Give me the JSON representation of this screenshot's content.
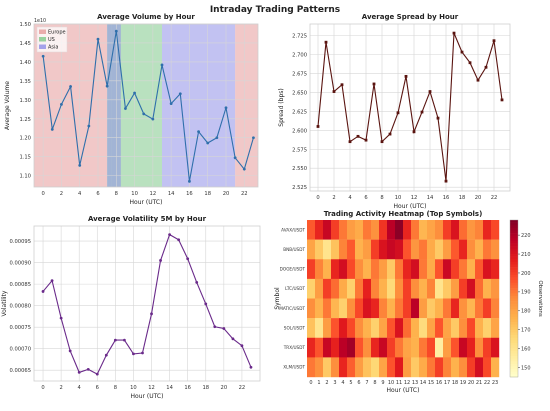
{
  "title": "Intraday Trading Patterns",
  "colors": {
    "europe": "#e69a9a",
    "us": "#7fc98a",
    "asia": "#8f8fe8",
    "volume_line": "#2f6fab",
    "spread_line": "#5a1410",
    "volatility_line": "#6a2a8a",
    "grid": "#d6d6d6"
  },
  "chart_data": [
    {
      "type": "line",
      "title": "Average Volume by Hour",
      "xlabel": "Hour (UTC)",
      "ylabel": "Average Volume",
      "y_exponent_label": "1e10",
      "xlim": [
        -1,
        23.5
      ],
      "ylim": [
        1.07,
        1.5
      ],
      "x_ticks": [
        0,
        2,
        4,
        6,
        8,
        10,
        12,
        14,
        16,
        18,
        20,
        22
      ],
      "y_ticks": [
        1.1,
        1.15,
        1.2,
        1.25,
        1.3,
        1.35,
        1.4,
        1.45,
        1.5
      ],
      "x_tick_labels": [
        "0",
        "2",
        "4",
        "6",
        "8",
        "10",
        "12",
        "14",
        "16",
        "18",
        "20",
        "22"
      ],
      "y_tick_labels": [
        "1.10",
        "1.15",
        "1.20",
        "1.25",
        "1.30",
        "1.35",
        "1.40",
        "1.45",
        "1.50"
      ],
      "x": [
        0,
        1,
        2,
        3,
        4,
        5,
        6,
        7,
        8,
        9,
        10,
        11,
        12,
        13,
        14,
        15,
        16,
        17,
        18,
        19,
        20,
        21,
        22,
        23
      ],
      "values": [
        1.415,
        1.222,
        1.288,
        1.335,
        1.127,
        1.231,
        1.46,
        1.336,
        1.481,
        1.277,
        1.318,
        1.263,
        1.249,
        1.392,
        1.29,
        1.316,
        1.085,
        1.216,
        1.186,
        1.2,
        1.279,
        1.147,
        1.117,
        1.2
      ],
      "shaded_regions": [
        {
          "name": "Europe",
          "x0": -1,
          "x1": 7
        },
        {
          "name": "US",
          "x0": 7,
          "x1": 13
        },
        {
          "name": "Asia",
          "x0": 13,
          "x1": 21
        },
        {
          "name": "Europe",
          "x0": 21,
          "x1": 23.5
        },
        {
          "name": "Asia",
          "x0": 7.5,
          "x1": 8.5
        },
        {
          "name": "Asia",
          "x0": 7,
          "x1": 7.5
        }
      ],
      "legend": [
        "Europe",
        "US",
        "Asia"
      ],
      "legend_position": "top-left",
      "grid": true
    },
    {
      "type": "line",
      "title": "Average Spread by Hour",
      "xlabel": "Hour (UTC)",
      "ylabel": "Spread (bps)",
      "xlim": [
        -1,
        24
      ],
      "ylim": [
        2.52,
        2.74
      ],
      "x_ticks": [
        0,
        4,
        8,
        12,
        16,
        20
      ],
      "y_ticks": [
        2.525,
        2.55,
        2.575,
        2.6,
        2.625,
        2.65,
        2.675,
        2.7,
        2.725
      ],
      "x_tick_labels": [
        "0",
        "4",
        "8",
        "12",
        "16",
        "20"
      ],
      "y_tick_labels": [
        "2.525",
        "2.550",
        "2.575",
        "2.600",
        "2.625",
        "2.650",
        "2.675",
        "2.700",
        "2.725"
      ],
      "x_ticks_extra": [
        2,
        6,
        10,
        14,
        18,
        22
      ],
      "x_tick_labels_extra": [
        "2",
        "6",
        "10",
        "14",
        "18",
        "22"
      ],
      "x": [
        0,
        1,
        2,
        3,
        4,
        5,
        6,
        7,
        8,
        9,
        10,
        11,
        12,
        13,
        14,
        15,
        16,
        17,
        18,
        19,
        20,
        21,
        22,
        23
      ],
      "values": [
        2.605,
        2.716,
        2.651,
        2.66,
        2.585,
        2.592,
        2.587,
        2.661,
        2.585,
        2.595,
        2.623,
        2.671,
        2.598,
        2.624,
        2.651,
        2.616,
        2.533,
        2.728,
        2.703,
        2.689,
        2.666,
        2.683,
        2.718,
        2.64
      ],
      "grid": true
    },
    {
      "type": "line",
      "title": "Average Volatility 5M by Hour",
      "xlabel": "Hour (UTC)",
      "ylabel": "Volatility",
      "xlim": [
        -1,
        24
      ],
      "ylim": [
        0.000625,
        0.000985
      ],
      "x_ticks": [
        0,
        2,
        4,
        6,
        8,
        10,
        12,
        14,
        16,
        18,
        20,
        22
      ],
      "y_ticks": [
        0.00065,
        0.0007,
        0.00075,
        0.0008,
        0.00085,
        0.0009,
        0.00095
      ],
      "x_tick_labels": [
        "0",
        "2",
        "4",
        "6",
        "8",
        "10",
        "12",
        "14",
        "16",
        "18",
        "20",
        "22"
      ],
      "y_tick_labels": [
        "0.00065",
        "0.00070",
        "0.00075",
        "0.00080",
        "0.00085",
        "0.00090",
        "0.00095"
      ],
      "x": [
        0,
        1,
        2,
        3,
        4,
        5,
        6,
        7,
        8,
        9,
        10,
        11,
        12,
        13,
        14,
        15,
        16,
        17,
        18,
        19,
        20,
        21,
        22,
        23
      ],
      "values": [
        0.000833,
        0.000858,
        0.000771,
        0.000695,
        0.000645,
        0.000652,
        0.000641,
        0.000685,
        0.00072,
        0.00072,
        0.000688,
        0.00069,
        0.000781,
        0.000905,
        0.000965,
        0.000953,
        0.000909,
        0.000854,
        0.000804,
        0.000751,
        0.000747,
        0.000723,
        0.000707,
        0.000657
      ],
      "grid": true
    },
    {
      "type": "heatmap",
      "title": "Trading Activity Heatmap (Top Symbols)",
      "xlabel": "Hour (UTC)",
      "ylabel": "Symbol",
      "colorbar_label": "Observations",
      "colorbar_ticks": [
        150,
        160,
        170,
        180,
        190,
        200,
        210,
        220
      ],
      "colorbar_range": [
        145,
        228
      ],
      "rows": [
        "AVAXUSDT",
        "BNBUSDT",
        "DOGEUSDT",
        "LTCUSDT",
        "MATICUSDT",
        "SOLUSDT",
        "TRXUSDT",
        "XLMUSDT"
      ],
      "row_labels": [
        "AVAX/USDT",
        "BNB/USDT",
        "DOGE/USDT",
        "LTC/USDT",
        "MATIC/USDT",
        "SOL/USDT",
        "TRX/USDT",
        "XLM/USDT"
      ],
      "columns": [
        "0",
        "1",
        "2",
        "3",
        "4",
        "5",
        "6",
        "7",
        "8",
        "9",
        "10",
        "11",
        "12",
        "13",
        "14",
        "15",
        "16",
        "17",
        "18",
        "19",
        "20",
        "21",
        "22",
        "23"
      ],
      "values": [
        [
          195,
          205,
          215,
          200,
          190,
          182,
          178,
          190,
          185,
          202,
          218,
          226,
          205,
          190,
          175,
          180,
          186,
          200,
          210,
          192,
          184,
          188,
          205,
          198
        ],
        [
          180,
          170,
          160,
          172,
          188,
          195,
          176,
          182,
          200,
          210,
          215,
          212,
          196,
          184,
          190,
          178,
          170,
          182,
          195,
          205,
          186,
          176,
          190,
          185
        ],
        [
          200,
          188,
          176,
          205,
          212,
          198,
          186,
          176,
          190,
          182,
          170,
          190,
          205,
          212,
          190,
          178,
          196,
          214,
          200,
          190,
          176,
          195,
          210,
          205
        ],
        [
          168,
          182,
          200,
          192,
          178,
          168,
          190,
          206,
          188,
          176,
          165,
          186,
          200,
          186,
          176,
          188,
          160,
          170,
          182,
          200,
          212,
          192,
          176,
          184
        ],
        [
          186,
          176,
          190,
          175,
          168,
          186,
          198,
          210,
          205,
          188,
          176,
          190,
          200,
          218,
          182,
          170,
          176,
          190,
          205,
          185,
          175,
          190,
          200,
          188
        ],
        [
          172,
          160,
          182,
          196,
          208,
          198,
          186,
          176,
          168,
          180,
          196,
          210,
          192,
          176,
          164,
          180,
          196,
          180,
          170,
          186,
          198,
          176,
          168,
          180
        ],
        [
          205,
          196,
          215,
          206,
          218,
          222,
          196,
          186,
          205,
          215,
          200,
          190,
          180,
          176,
          190,
          198,
          155,
          182,
          196,
          215,
          206,
          186,
          200,
          210
        ],
        [
          190,
          185,
          170,
          186,
          205,
          194,
          182,
          172,
          166,
          180,
          196,
          208,
          182,
          170,
          178,
          190,
          200,
          188,
          176,
          186,
          200,
          212,
          198,
          176
        ]
      ]
    }
  ]
}
